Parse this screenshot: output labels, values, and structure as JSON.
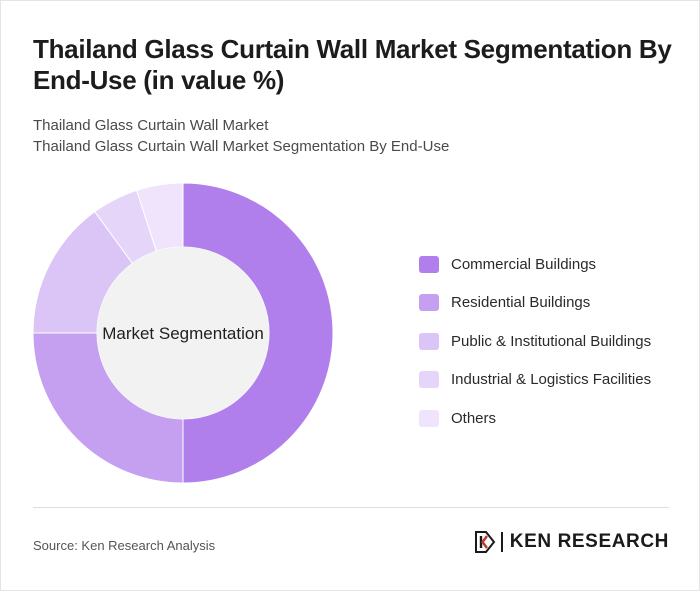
{
  "header": {
    "title": "Thailand Glass Curtain Wall Market Segmentation By End-Use (in value %)",
    "subtitle_line1": "Thailand Glass Curtain Wall Market",
    "subtitle_line2": "Thailand Glass Curtain Wall Market Segmentation By End-Use"
  },
  "chart_data": {
    "type": "pie",
    "donut": true,
    "center_label": "Market Segmentation",
    "legend_position": "right",
    "categories": [
      "Commercial Buildings",
      "Residential Buildings",
      "Public & Institutional Buildings",
      "Industrial & Logistics Facilities",
      "Others"
    ],
    "values": [
      50,
      25,
      15,
      5,
      5
    ],
    "colors": [
      "#b07fec",
      "#c59ff0",
      "#dbc4f6",
      "#e5d5f8",
      "#efe4fb"
    ]
  },
  "footer": {
    "source": "Source: Ken Research Analysis",
    "brand_name": "KEN RESEARCH",
    "brand_icon": "ken-research-logo-icon"
  }
}
